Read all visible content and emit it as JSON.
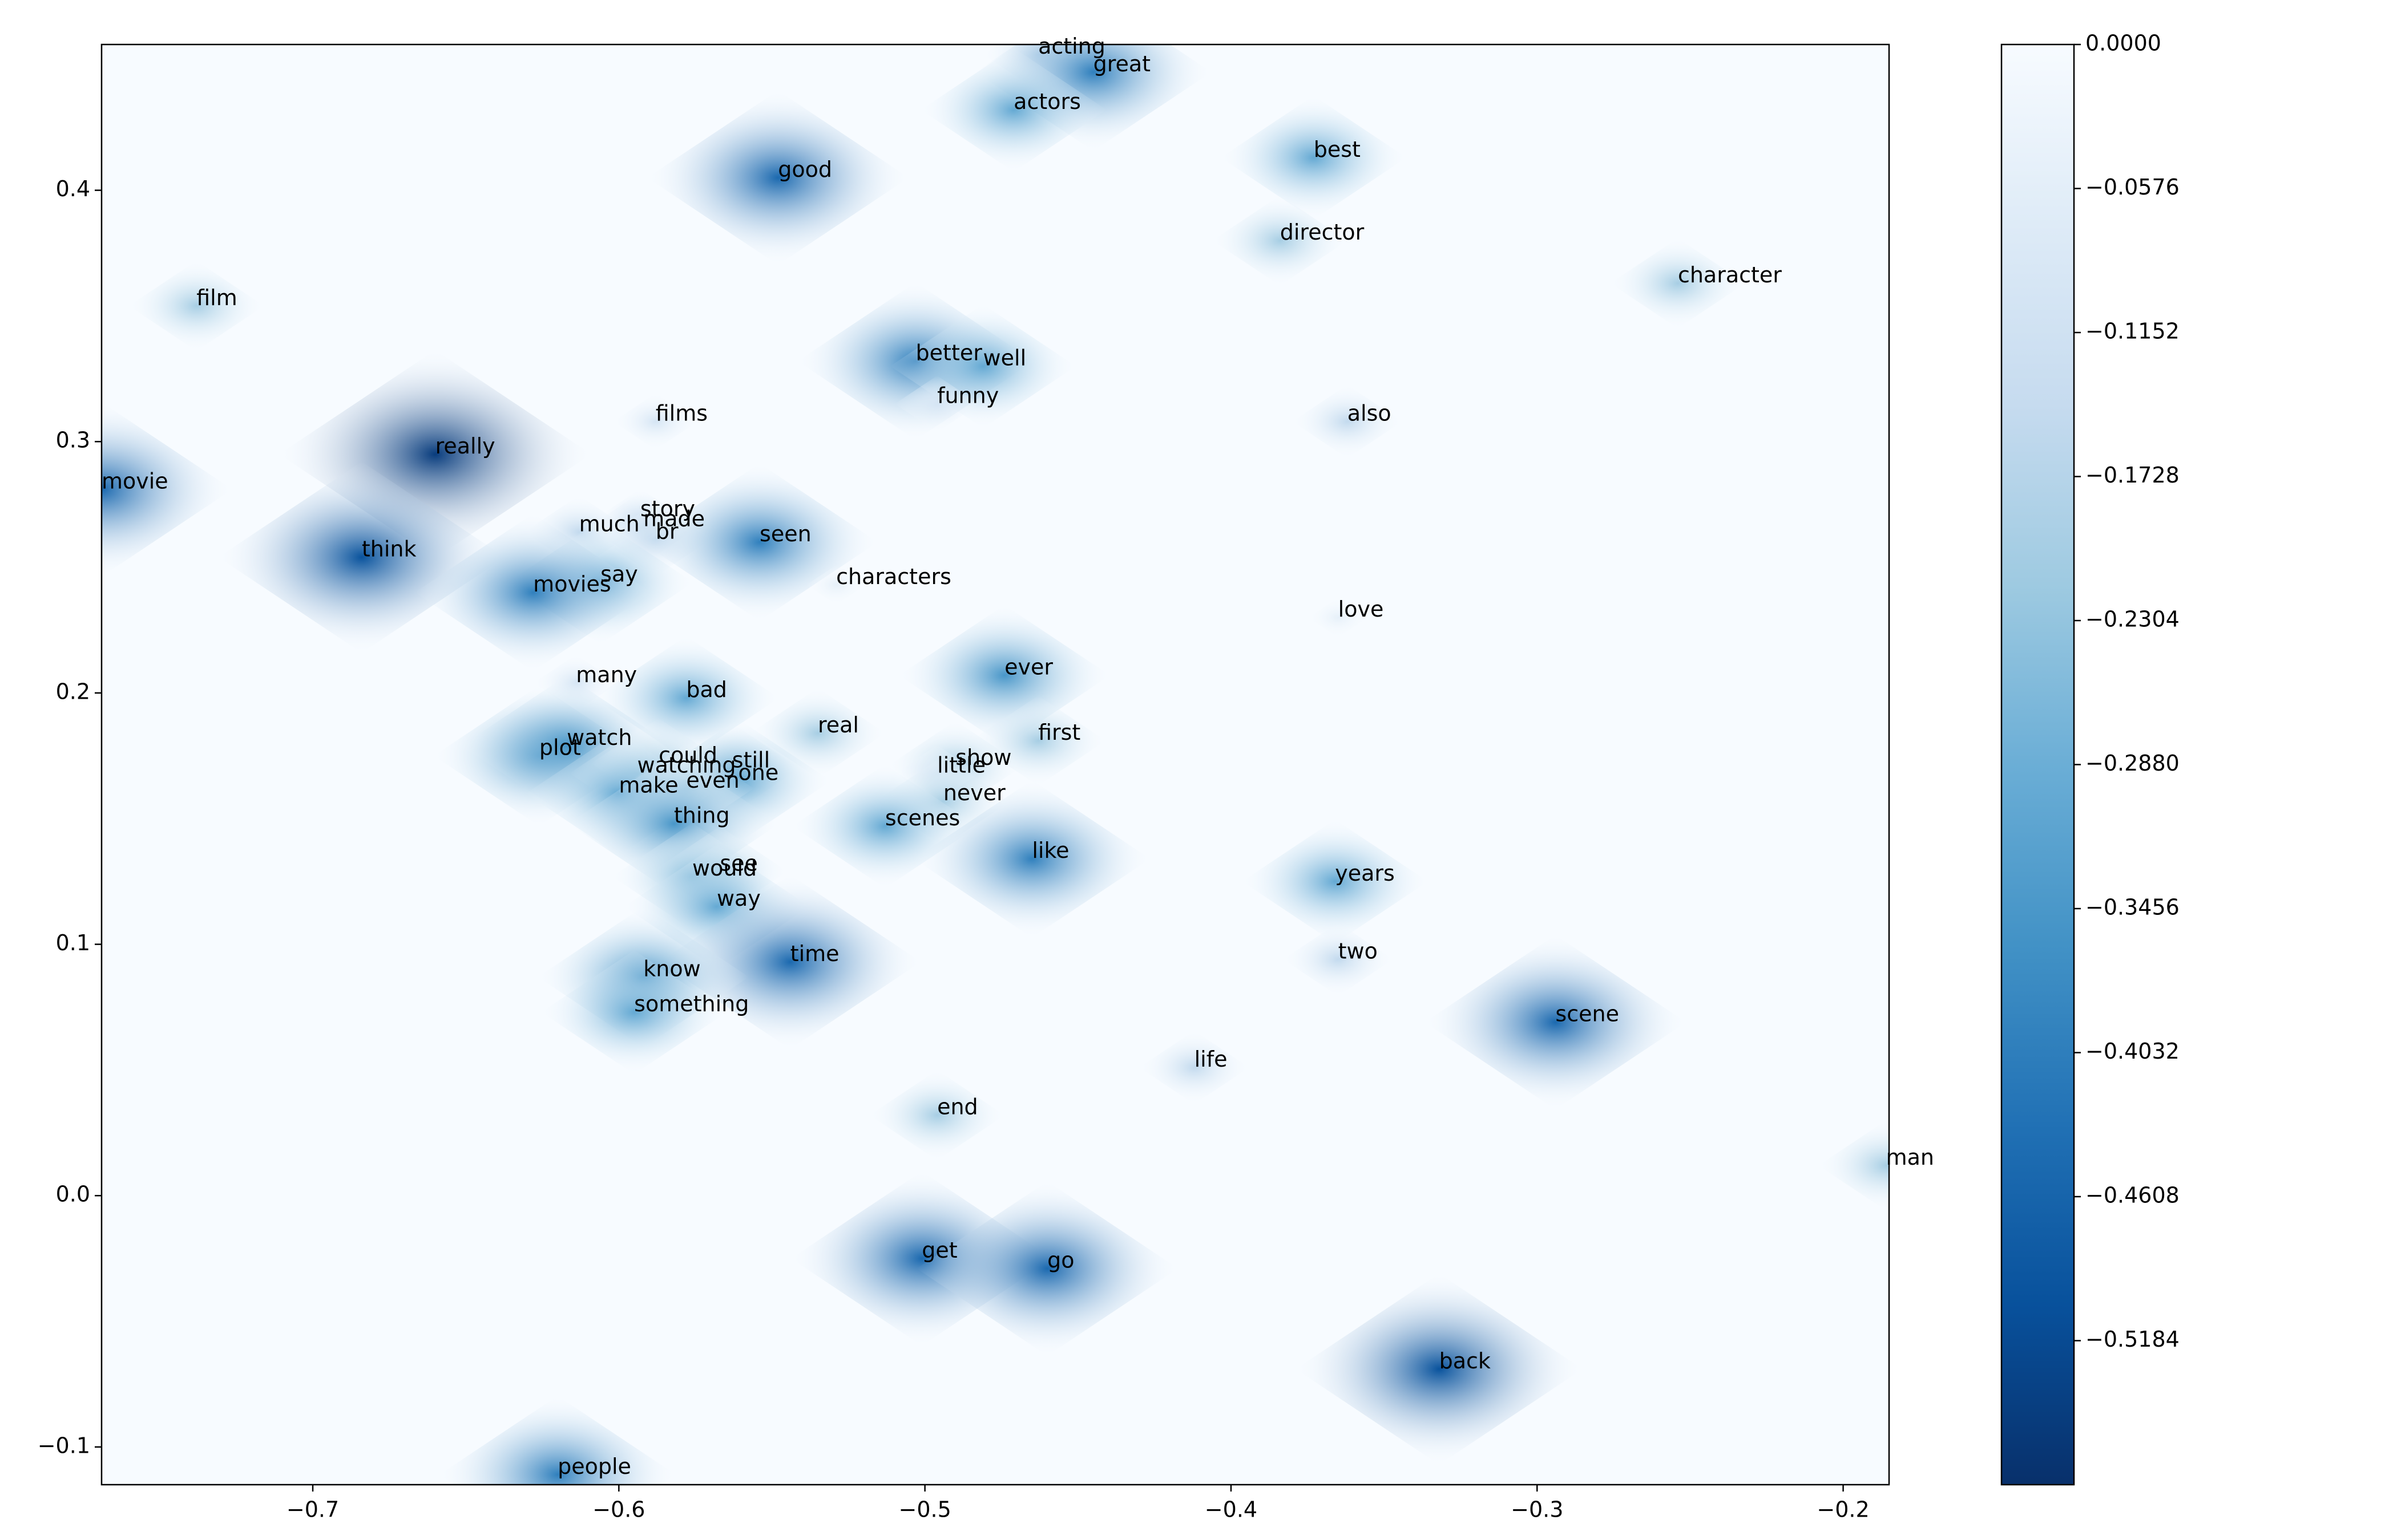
{
  "chart_data": {
    "type": "scatter",
    "xlim": [
      -0.769,
      -0.185
    ],
    "ylim": [
      -0.115,
      0.458
    ],
    "xticks": [
      {
        "value": -0.7,
        "label": "−0.7"
      },
      {
        "value": -0.6,
        "label": "−0.6"
      },
      {
        "value": -0.5,
        "label": "−0.5"
      },
      {
        "value": -0.4,
        "label": "−0.4"
      },
      {
        "value": -0.3,
        "label": "−0.3"
      },
      {
        "value": -0.2,
        "label": "−0.2"
      }
    ],
    "yticks": [
      {
        "value": -0.1,
        "label": "−0.1"
      },
      {
        "value": 0.0,
        "label": "0.0"
      },
      {
        "value": 0.1,
        "label": "0.1"
      },
      {
        "value": 0.2,
        "label": "0.2"
      },
      {
        "value": 0.3,
        "label": "0.3"
      },
      {
        "value": 0.4,
        "label": "0.4"
      }
    ],
    "colormap": "Blues",
    "clim": [
      -0.576,
      0
    ],
    "cticks": [
      {
        "value": 0,
        "label": "0.0000"
      },
      {
        "value": -0.0576,
        "label": "−0.0576"
      },
      {
        "value": -0.1152,
        "label": "−0.1152"
      },
      {
        "value": -0.1728,
        "label": "−0.1728"
      },
      {
        "value": -0.2304,
        "label": "−0.2304"
      },
      {
        "value": -0.288,
        "label": "−0.2880"
      },
      {
        "value": -0.3456,
        "label": "−0.3456"
      },
      {
        "value": -0.4032,
        "label": "−0.4032"
      },
      {
        "value": -0.4608,
        "label": "−0.4608"
      },
      {
        "value": -0.5184,
        "label": "−0.5184"
      }
    ],
    "points": [
      {
        "label": "acting",
        "x": -0.463,
        "y": 0.454,
        "value": -0.15
      },
      {
        "label": "great",
        "x": -0.445,
        "y": 0.447,
        "value": -0.4
      },
      {
        "label": "actors",
        "x": -0.471,
        "y": 0.432,
        "value": -0.3
      },
      {
        "label": "good",
        "x": -0.548,
        "y": 0.405,
        "value": -0.45
      },
      {
        "label": "best",
        "x": -0.373,
        "y": 0.413,
        "value": -0.3
      },
      {
        "label": "director",
        "x": -0.384,
        "y": 0.38,
        "value": -0.2
      },
      {
        "label": "character",
        "x": -0.254,
        "y": 0.363,
        "value": -0.2
      },
      {
        "label": "film",
        "x": -0.738,
        "y": 0.354,
        "value": -0.2
      },
      {
        "label": "better",
        "x": -0.503,
        "y": 0.332,
        "value": -0.4
      },
      {
        "label": "well",
        "x": -0.481,
        "y": 0.33,
        "value": -0.3
      },
      {
        "label": "funny",
        "x": -0.496,
        "y": 0.315,
        "value": -0.1
      },
      {
        "label": "also",
        "x": -0.362,
        "y": 0.308,
        "value": -0.15
      },
      {
        "label": "films",
        "x": -0.588,
        "y": 0.308,
        "value": -0.1
      },
      {
        "label": "really",
        "x": -0.66,
        "y": 0.295,
        "value": -0.55
      },
      {
        "label": "movie",
        "x": -0.769,
        "y": 0.281,
        "value": -0.45
      },
      {
        "label": "story",
        "x": -0.593,
        "y": 0.27,
        "value": -0.1
      },
      {
        "label": "much",
        "x": -0.613,
        "y": 0.264,
        "value": -0.15
      },
      {
        "label": "made",
        "x": -0.592,
        "y": 0.266,
        "value": -0.15
      },
      {
        "label": "br",
        "x": -0.588,
        "y": 0.261,
        "value": -0.15
      },
      {
        "label": "seen",
        "x": -0.554,
        "y": 0.26,
        "value": -0.4
      },
      {
        "label": "think",
        "x": -0.684,
        "y": 0.254,
        "value": -0.5
      },
      {
        "label": "say",
        "x": -0.606,
        "y": 0.244,
        "value": -0.3
      },
      {
        "label": "movies",
        "x": -0.628,
        "y": 0.24,
        "value": -0.4
      },
      {
        "label": "characters",
        "x": -0.529,
        "y": 0.243,
        "value": -0.05
      },
      {
        "label": "love",
        "x": -0.365,
        "y": 0.23,
        "value": -0.05
      },
      {
        "label": "many",
        "x": -0.614,
        "y": 0.204,
        "value": -0.1
      },
      {
        "label": "ever",
        "x": -0.474,
        "y": 0.207,
        "value": -0.35
      },
      {
        "label": "bad",
        "x": -0.578,
        "y": 0.198,
        "value": -0.3
      },
      {
        "label": "real",
        "x": -0.535,
        "y": 0.184,
        "value": -0.2
      },
      {
        "label": "first",
        "x": -0.463,
        "y": 0.181,
        "value": -0.2
      },
      {
        "label": "plot",
        "x": -0.626,
        "y": 0.175,
        "value": -0.35
      },
      {
        "label": "watch",
        "x": -0.617,
        "y": 0.179,
        "value": -0.35
      },
      {
        "label": "could",
        "x": -0.587,
        "y": 0.172,
        "value": -0.2
      },
      {
        "label": "still",
        "x": -0.563,
        "y": 0.17,
        "value": -0.2
      },
      {
        "label": "show",
        "x": -0.49,
        "y": 0.171,
        "value": -0.2
      },
      {
        "label": "watching",
        "x": -0.594,
        "y": 0.168,
        "value": -0.2
      },
      {
        "label": "little",
        "x": -0.496,
        "y": 0.168,
        "value": -0.1
      },
      {
        "label": "one",
        "x": -0.561,
        "y": 0.165,
        "value": -0.3
      },
      {
        "label": "even",
        "x": -0.578,
        "y": 0.162,
        "value": -0.2
      },
      {
        "label": "make",
        "x": -0.6,
        "y": 0.16,
        "value": -0.3
      },
      {
        "label": "never",
        "x": -0.494,
        "y": 0.157,
        "value": -0.2
      },
      {
        "label": "thing",
        "x": -0.582,
        "y": 0.148,
        "value": -0.35
      },
      {
        "label": "scenes",
        "x": -0.513,
        "y": 0.147,
        "value": -0.3
      },
      {
        "label": "like",
        "x": -0.465,
        "y": 0.134,
        "value": -0.4
      },
      {
        "label": "see",
        "x": -0.567,
        "y": 0.129,
        "value": -0.2
      },
      {
        "label": "would",
        "x": -0.576,
        "y": 0.127,
        "value": -0.25
      },
      {
        "label": "years",
        "x": -0.366,
        "y": 0.125,
        "value": -0.3
      },
      {
        "label": "way",
        "x": -0.568,
        "y": 0.115,
        "value": -0.3
      },
      {
        "label": "two",
        "x": -0.365,
        "y": 0.094,
        "value": -0.15
      },
      {
        "label": "time",
        "x": -0.544,
        "y": 0.093,
        "value": -0.45
      },
      {
        "label": "know",
        "x": -0.592,
        "y": 0.087,
        "value": -0.35
      },
      {
        "label": "something",
        "x": -0.595,
        "y": 0.073,
        "value": -0.3
      },
      {
        "label": "scene",
        "x": -0.294,
        "y": 0.069,
        "value": -0.45
      },
      {
        "label": "life",
        "x": -0.412,
        "y": 0.051,
        "value": -0.15
      },
      {
        "label": "end",
        "x": -0.496,
        "y": 0.032,
        "value": -0.2
      },
      {
        "label": "man",
        "x": -0.186,
        "y": 0.012,
        "value": -0.2
      },
      {
        "label": "get",
        "x": -0.501,
        "y": -0.025,
        "value": -0.45
      },
      {
        "label": "go",
        "x": -0.46,
        "y": -0.029,
        "value": -0.45
      },
      {
        "label": "back",
        "x": -0.332,
        "y": -0.069,
        "value": -0.5
      },
      {
        "label": "people",
        "x": -0.62,
        "y": -0.111,
        "value": -0.4
      }
    ]
  }
}
